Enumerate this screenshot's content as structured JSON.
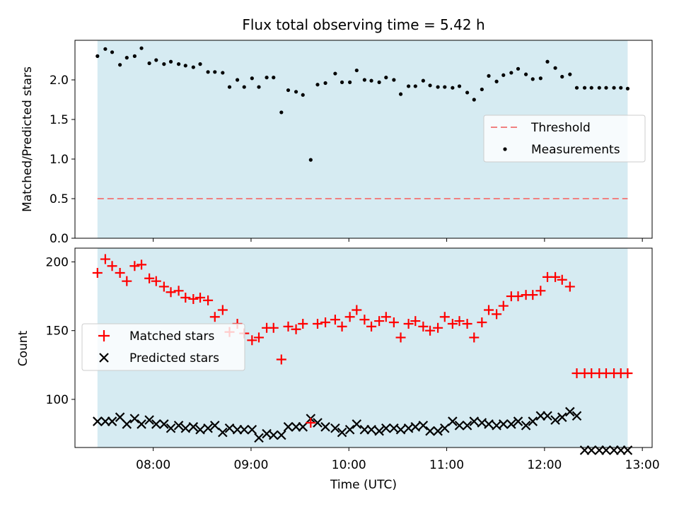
{
  "chart_data": {
    "title": "Flux total observing time = 5.42 h",
    "x_unit": "time (UTC, hours)",
    "xlabel": "Time (UTC)",
    "x_ticks": [
      "08:00",
      "09:00",
      "10:00",
      "11:00",
      "12:00",
      "13:00"
    ],
    "x_tick_values": [
      8,
      9,
      10,
      11,
      12,
      13
    ],
    "xlim": [
      7.2,
      13.1
    ],
    "shaded_span": [
      7.43,
      12.85
    ],
    "colors": {
      "shade": "#add8e6",
      "threshold": "#f08080",
      "matched": "#ff0000",
      "predicted": "#000000",
      "measurement": "#000000"
    },
    "panels": [
      {
        "type": "scatter",
        "ylabel": "Matched/Predicted stars",
        "ylim": [
          0,
          2.5
        ],
        "y_ticks": [
          "0.0",
          "0.5",
          "1.0",
          "1.5",
          "2.0"
        ],
        "y_tick_values": [
          0,
          0.5,
          1.0,
          1.5,
          2.0
        ],
        "legend": {
          "placement": "center-right",
          "entries": [
            "Threshold",
            "Measurements"
          ]
        },
        "threshold": {
          "name": "Threshold",
          "y": 0.5
        },
        "series": [
          {
            "name": "Measurements",
            "marker": "dot",
            "x": [
              7.43,
              7.51,
              7.58,
              7.66,
              7.73,
              7.81,
              7.88,
              7.96,
              8.03,
              8.11,
              8.18,
              8.26,
              8.33,
              8.41,
              8.48,
              8.56,
              8.63,
              8.71,
              8.78,
              8.86,
              8.93,
              9.01,
              9.08,
              9.16,
              9.23,
              9.31,
              9.38,
              9.46,
              9.53,
              9.61,
              9.68,
              9.76,
              9.86,
              9.93,
              10.01,
              10.08,
              10.16,
              10.23,
              10.31,
              10.38,
              10.46,
              10.53,
              10.61,
              10.68,
              10.76,
              10.83,
              10.91,
              10.98,
              11.06,
              11.13,
              11.21,
              11.28,
              11.36,
              11.43,
              11.51,
              11.58,
              11.66,
              11.73,
              11.81,
              11.88,
              11.96,
              12.03,
              12.11,
              12.18,
              12.26,
              12.33,
              12.41,
              12.48,
              12.56,
              12.63,
              12.71,
              12.78,
              12.85
            ],
            "y": [
              2.3,
              2.39,
              2.35,
              2.19,
              2.28,
              2.3,
              2.4,
              2.21,
              2.25,
              2.2,
              2.23,
              2.2,
              2.18,
              2.16,
              2.2,
              2.1,
              2.1,
              2.09,
              1.91,
              2.0,
              1.91,
              2.02,
              1.91,
              2.03,
              2.03,
              1.59,
              1.87,
              1.85,
              1.81,
              0.99,
              1.94,
              1.96,
              2.08,
              1.97,
              1.97,
              2.12,
              2.0,
              1.99,
              1.97,
              2.03,
              2.0,
              1.82,
              1.92,
              1.92,
              1.99,
              1.93,
              1.91,
              1.91,
              1.9,
              1.92,
              1.84,
              1.75,
              1.88,
              2.05,
              1.98,
              2.06,
              2.09,
              2.14,
              2.07,
              2.01,
              2.02,
              2.23,
              2.15,
              2.04,
              2.07,
              1.9,
              1.9,
              1.9,
              1.9,
              1.9,
              1.9,
              1.9,
              1.89
            ]
          }
        ]
      },
      {
        "type": "scatter",
        "ylabel": "Count",
        "ylim": [
          65,
          210
        ],
        "y_ticks": [
          "100",
          "150",
          "200"
        ],
        "y_tick_values": [
          100,
          150,
          200
        ],
        "legend": {
          "placement": "center-left",
          "entries": [
            "Matched stars",
            "Predicted stars"
          ]
        },
        "series": [
          {
            "name": "Matched stars",
            "marker": "plus",
            "x": [
              7.43,
              7.51,
              7.58,
              7.66,
              7.73,
              7.81,
              7.88,
              7.96,
              8.03,
              8.11,
              8.18,
              8.26,
              8.33,
              8.41,
              8.48,
              8.56,
              8.63,
              8.71,
              8.78,
              8.86,
              8.93,
              9.01,
              9.08,
              9.16,
              9.23,
              9.31,
              9.38,
              9.46,
              9.53,
              9.61,
              9.68,
              9.76,
              9.86,
              9.93,
              10.01,
              10.08,
              10.16,
              10.23,
              10.31,
              10.38,
              10.46,
              10.53,
              10.61,
              10.68,
              10.76,
              10.83,
              10.91,
              10.98,
              11.06,
              11.13,
              11.21,
              11.28,
              11.36,
              11.43,
              11.51,
              11.58,
              11.66,
              11.73,
              11.81,
              11.88,
              11.96,
              12.03,
              12.11,
              12.18,
              12.26,
              12.33,
              12.41,
              12.48,
              12.56,
              12.63,
              12.71,
              12.78,
              12.85
            ],
            "y": [
              192,
              202,
              197,
              192,
              186,
              197,
              198,
              188,
              186,
              182,
              178,
              179,
              174,
              173,
              174,
              172,
              160,
              165,
              149,
              155,
              148,
              143,
              145,
              152,
              152,
              129,
              153,
              151,
              155,
              83,
              155,
              156,
              158,
              153,
              160,
              165,
              158,
              153,
              157,
              160,
              156,
              145,
              155,
              157,
              153,
              150,
              152,
              160,
              155,
              157,
              155,
              145,
              156,
              165,
              162,
              168,
              175,
              175,
              176,
              176,
              179,
              189,
              189,
              187,
              182,
              119,
              119,
              119,
              119,
              119,
              119,
              119,
              119
            ]
          },
          {
            "name": "Predicted stars",
            "marker": "x",
            "x": [
              7.43,
              7.51,
              7.58,
              7.66,
              7.73,
              7.81,
              7.88,
              7.96,
              8.03,
              8.11,
              8.18,
              8.26,
              8.33,
              8.41,
              8.48,
              8.56,
              8.63,
              8.71,
              8.78,
              8.86,
              8.93,
              9.01,
              9.08,
              9.16,
              9.23,
              9.31,
              9.38,
              9.46,
              9.53,
              9.61,
              9.68,
              9.76,
              9.86,
              9.93,
              10.01,
              10.08,
              10.16,
              10.23,
              10.31,
              10.38,
              10.46,
              10.53,
              10.61,
              10.68,
              10.76,
              10.83,
              10.91,
              10.98,
              11.06,
              11.13,
              11.21,
              11.28,
              11.36,
              11.43,
              11.51,
              11.58,
              11.66,
              11.73,
              11.81,
              11.88,
              11.96,
              12.03,
              12.11,
              12.18,
              12.26,
              12.33,
              12.41,
              12.48,
              12.56,
              12.63,
              12.71,
              12.78,
              12.85
            ],
            "y": [
              84,
              84,
              84,
              87,
              82,
              86,
              82,
              85,
              82,
              82,
              79,
              81,
              79,
              80,
              78,
              79,
              81,
              76,
              79,
              78,
              78,
              78,
              72,
              75,
              74,
              74,
              80,
              80,
              80,
              86,
              83,
              80,
              79,
              76,
              78,
              82,
              78,
              78,
              77,
              79,
              79,
              78,
              79,
              80,
              81,
              77,
              77,
              79,
              84,
              81,
              81,
              84,
              83,
              82,
              81,
              82,
              82,
              84,
              81,
              84,
              88,
              88,
              85,
              87,
              91,
              88,
              63,
              63,
              63,
              63,
              63,
              63,
              63
            ]
          }
        ]
      }
    ]
  }
}
